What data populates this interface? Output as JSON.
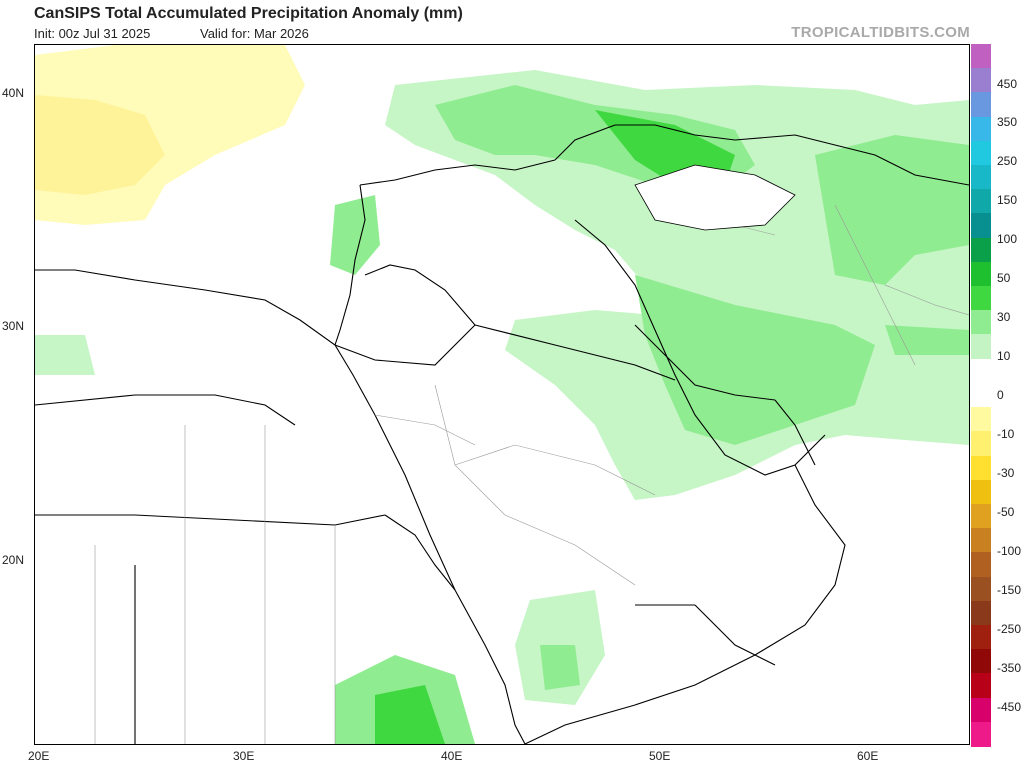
{
  "header": {
    "title": "CanSIPS Total Accumulated Precipitation Anomaly (mm)",
    "init": "Init: 00z Jul 31 2025",
    "valid": "Valid for: Mar 2026",
    "brand": "TROPICALTIDBITS.COM"
  },
  "map": {
    "lon_ticks": [
      "20E",
      "30E",
      "40E",
      "50E",
      "60E"
    ],
    "lat_ticks": [
      "40N",
      "30N",
      "20N"
    ],
    "region": "Middle East / Eastern Mediterranean"
  },
  "colorbar": {
    "labels": [
      "450",
      "350",
      "250",
      "150",
      "100",
      "50",
      "30",
      "10",
      "0",
      "-10",
      "-30",
      "-50",
      "-100",
      "-150",
      "-250",
      "-350",
      "-450"
    ],
    "colors": [
      "#c060c0",
      "#9a7ed0",
      "#6a98e0",
      "#38b8e8",
      "#20c8e0",
      "#18b8c8",
      "#10a8a8",
      "#089090",
      "#0aa04a",
      "#1ec030",
      "#40d840",
      "#90ec90",
      "#c4f4c4",
      "#ffffff",
      "#ffffff",
      "#fffaa0",
      "#fff070",
      "#ffe030",
      "#f0c010",
      "#e0a020",
      "#c88020",
      "#b06020",
      "#9a5020",
      "#8a3a1a",
      "#a02010",
      "#900808",
      "#b80018",
      "#d8006a",
      "#ee1a8a"
    ]
  }
}
